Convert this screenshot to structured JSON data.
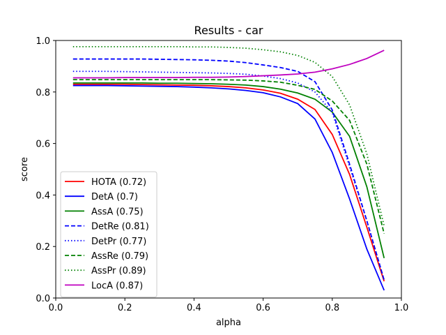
{
  "chart_data": {
    "type": "line",
    "title": "Results - car",
    "xlabel": "alpha",
    "ylabel": "score",
    "xlim": [
      0.0,
      1.0
    ],
    "ylim": [
      0.0,
      1.0
    ],
    "x_ticks": [
      "0.0",
      "0.2",
      "0.4",
      "0.6",
      "0.8",
      "1.0"
    ],
    "y_ticks": [
      "0.0",
      "0.2",
      "0.4",
      "0.6",
      "0.8",
      "1.0"
    ],
    "grid": false,
    "legend_position": "lower-left",
    "x": [
      0.05,
      0.1,
      0.15,
      0.2,
      0.25,
      0.3,
      0.35,
      0.4,
      0.45,
      0.5,
      0.55,
      0.6,
      0.65,
      0.7,
      0.75,
      0.8,
      0.85,
      0.9,
      0.95
    ],
    "series": [
      {
        "name": "HOTA (0.72)",
        "color": "#ff0000",
        "dash": "solid",
        "values": [
          0.83,
          0.83,
          0.83,
          0.83,
          0.829,
          0.828,
          0.827,
          0.826,
          0.824,
          0.821,
          0.816,
          0.808,
          0.795,
          0.772,
          0.732,
          0.635,
          0.48,
          0.275,
          0.065
        ]
      },
      {
        "name": "DetA (0.7)",
        "color": "#0000ff",
        "dash": "solid",
        "values": [
          0.825,
          0.825,
          0.825,
          0.824,
          0.823,
          0.822,
          0.821,
          0.819,
          0.816,
          0.812,
          0.806,
          0.797,
          0.781,
          0.755,
          0.695,
          0.565,
          0.385,
          0.19,
          0.03
        ]
      },
      {
        "name": "AssA (0.75)",
        "color": "#008000",
        "dash": "solid",
        "values": [
          0.835,
          0.835,
          0.835,
          0.835,
          0.835,
          0.834,
          0.834,
          0.833,
          0.832,
          0.83,
          0.827,
          0.821,
          0.811,
          0.796,
          0.772,
          0.722,
          0.628,
          0.432,
          0.155
        ]
      },
      {
        "name": "DetRe (0.81)",
        "color": "#0000ff",
        "dash": "dashed",
        "values": [
          0.928,
          0.928,
          0.928,
          0.928,
          0.928,
          0.927,
          0.926,
          0.925,
          0.923,
          0.92,
          0.914,
          0.905,
          0.895,
          0.88,
          0.84,
          0.73,
          0.52,
          0.3,
          0.07
        ]
      },
      {
        "name": "DetPr (0.77)",
        "color": "#0000ff",
        "dash": "dotted",
        "values": [
          0.88,
          0.88,
          0.88,
          0.879,
          0.878,
          0.877,
          0.876,
          0.875,
          0.874,
          0.872,
          0.869,
          0.862,
          0.852,
          0.835,
          0.8,
          0.72,
          0.51,
          0.3,
          0.07
        ]
      },
      {
        "name": "AssRe (0.79)",
        "color": "#008000",
        "dash": "dashed",
        "values": [
          0.848,
          0.848,
          0.848,
          0.848,
          0.848,
          0.848,
          0.848,
          0.848,
          0.848,
          0.847,
          0.846,
          0.843,
          0.838,
          0.826,
          0.81,
          0.765,
          0.69,
          0.52,
          0.25
        ]
      },
      {
        "name": "AssPr (0.89)",
        "color": "#008000",
        "dash": "dotted",
        "values": [
          0.976,
          0.976,
          0.976,
          0.976,
          0.976,
          0.976,
          0.976,
          0.975,
          0.975,
          0.973,
          0.97,
          0.964,
          0.956,
          0.942,
          0.915,
          0.86,
          0.75,
          0.56,
          0.28
        ]
      },
      {
        "name": "LocA (0.87)",
        "color": "#bf00bf",
        "dash": "solid",
        "values": [
          0.855,
          0.855,
          0.855,
          0.856,
          0.856,
          0.856,
          0.856,
          0.857,
          0.857,
          0.858,
          0.86,
          0.863,
          0.866,
          0.87,
          0.877,
          0.89,
          0.907,
          0.93,
          0.962
        ]
      }
    ]
  }
}
